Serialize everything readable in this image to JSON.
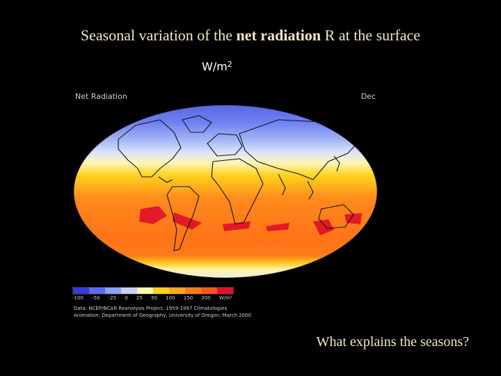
{
  "slide": {
    "title_prefix": "Seasonal variation of the ",
    "title_bold": "net radiation",
    "title_suffix": " R at the surface",
    "units_base": "W/m",
    "units_exp": "2",
    "question": "What explains the seasons?"
  },
  "figure": {
    "map_title": "Net Radiation",
    "month": "Dec",
    "colorbar_labels": [
      "-100",
      "-50",
      "-25",
      "0",
      "25",
      "50",
      "100",
      "150",
      "200",
      "W/m²"
    ],
    "colorbar_colors": [
      "#3a3ad6",
      "#5c6af0",
      "#8ea2f5",
      "#c6d2fa",
      "#fff6b0",
      "#ffd21e",
      "#ffaa18",
      "#ff7a18",
      "#ff5520",
      "#e0102a"
    ],
    "credit_line1": "Data: NCEP/NCAR Reanalysis Project, 1959-1997 Climatologies",
    "credit_line2": "Animation: Department of Geography, University of Oregon, March 2000"
  }
}
